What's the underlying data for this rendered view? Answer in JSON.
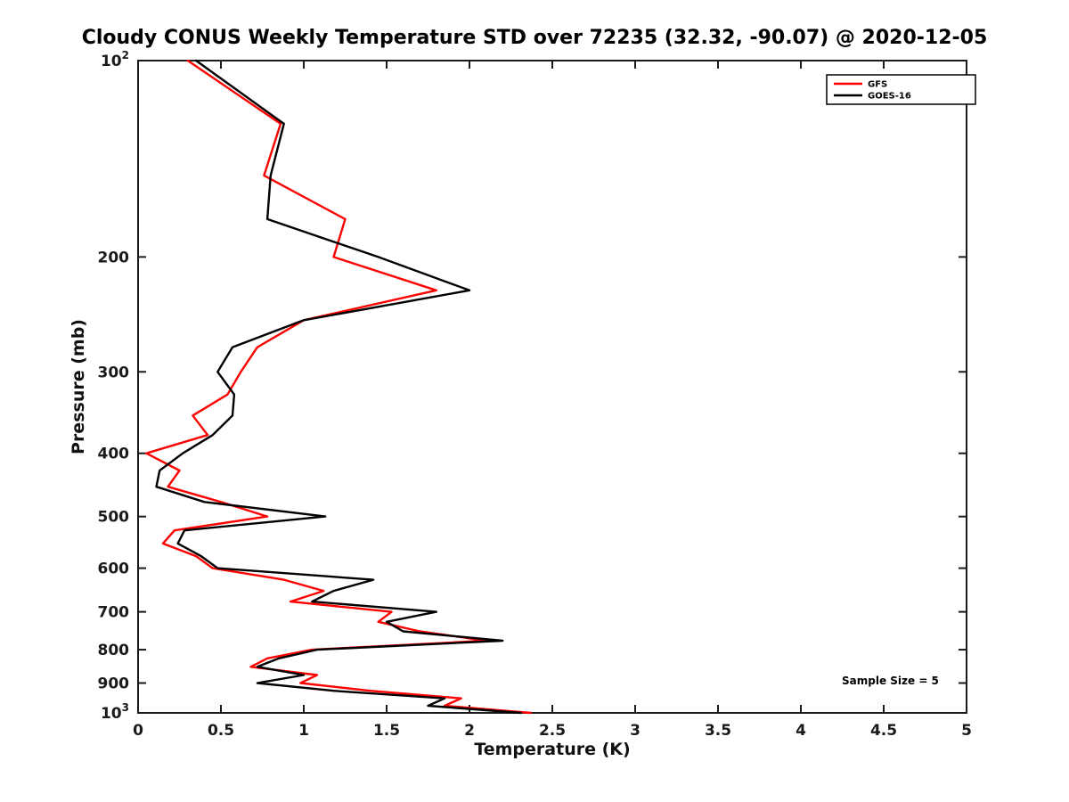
{
  "chart_data": {
    "type": "line",
    "title": "Cloudy CONUS Weekly Temperature STD over 72235 (32.32, -90.07) @ 2020-12-05",
    "xlabel": "Temperature (K)",
    "ylabel": "Pressure (mb)",
    "annotation": "Sample Size = 5",
    "xlim": [
      0,
      5
    ],
    "ylim": [
      100,
      1000
    ],
    "y_scale": "log",
    "y_inverted": true,
    "grid": false,
    "legend_position": "top-right",
    "axis_color": "#1a1a1a",
    "x_ticks": [
      0,
      0.5,
      1,
      1.5,
      2,
      2.5,
      3,
      3.5,
      4,
      4.5,
      5
    ],
    "x_tick_labels": [
      "0",
      "0.5",
      "1",
      "1.5",
      "2",
      "2.5",
      "3",
      "3.5",
      "4",
      "4.5",
      "5"
    ],
    "y_ticks": [
      100,
      200,
      300,
      400,
      500,
      600,
      700,
      800,
      900,
      1000
    ],
    "y_tick_labels": [
      "10^2",
      "200",
      "300",
      "400",
      "500",
      "600",
      "700",
      "800",
      "900",
      "10^3"
    ],
    "pressure_levels": [
      100,
      125,
      150,
      175,
      200,
      225,
      250,
      275,
      300,
      325,
      350,
      375,
      400,
      425,
      450,
      475,
      500,
      525,
      550,
      575,
      600,
      625,
      650,
      675,
      700,
      725,
      750,
      775,
      800,
      825,
      850,
      875,
      900,
      925,
      950,
      975,
      1000
    ],
    "series": [
      {
        "name": "GFS",
        "color": "#ff0000",
        "values": [
          0.3,
          0.86,
          0.76,
          1.25,
          1.18,
          1.8,
          1.0,
          0.72,
          0.62,
          0.54,
          0.33,
          0.42,
          0.05,
          0.25,
          0.18,
          0.5,
          0.78,
          0.22,
          0.15,
          0.35,
          0.45,
          0.88,
          1.12,
          0.92,
          1.53,
          1.45,
          1.7,
          2.1,
          1.05,
          0.78,
          0.68,
          1.08,
          0.98,
          1.4,
          1.95,
          1.85,
          2.37
        ]
      },
      {
        "name": "GOES-16",
        "color": "#000000",
        "values": [
          0.35,
          0.88,
          0.8,
          0.78,
          1.45,
          2.0,
          1.0,
          0.57,
          0.48,
          0.58,
          0.57,
          0.45,
          0.27,
          0.13,
          0.11,
          0.4,
          1.13,
          0.28,
          0.24,
          0.38,
          0.48,
          1.42,
          1.18,
          1.05,
          1.8,
          1.5,
          1.6,
          2.2,
          1.08,
          0.85,
          0.72,
          1.0,
          0.72,
          1.18,
          1.85,
          1.75,
          2.31
        ]
      }
    ]
  }
}
